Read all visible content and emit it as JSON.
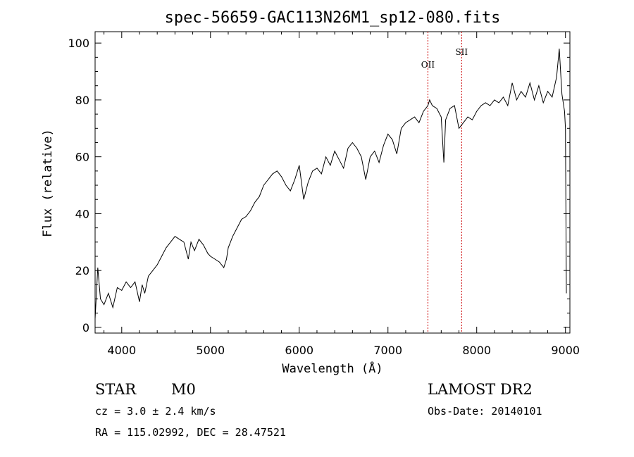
{
  "chart_data": {
    "type": "line",
    "title": "spec-56659-GAC113N26M1_sp12-080.fits",
    "xlabel": "Wavelength (Å)",
    "ylabel": "Flux (relative)",
    "xlim": [
      3700,
      9050
    ],
    "ylim": [
      -2,
      104
    ],
    "xticks": [
      4000,
      5000,
      6000,
      7000,
      8000,
      9000
    ],
    "yticks": [
      0,
      20,
      40,
      60,
      80,
      100
    ],
    "grid": false,
    "line_color": "#000000",
    "series": [
      {
        "x": [
          3700,
          3730,
          3760,
          3800,
          3850,
          3900,
          3950,
          4000,
          4050,
          4100,
          4150,
          4200,
          4230,
          4260,
          4300,
          4350,
          4400,
          4450,
          4500,
          4550,
          4600,
          4650,
          4700,
          4750,
          4780,
          4820,
          4870,
          4920,
          4970,
          5000,
          5050,
          5100,
          5150,
          5180,
          5200,
          5250,
          5300,
          5350,
          5400,
          5450,
          5500,
          5550,
          5600,
          5650,
          5700,
          5750,
          5800,
          5850,
          5900,
          5950,
          6000,
          6050,
          6100,
          6150,
          6200,
          6250,
          6300,
          6350,
          6400,
          6450,
          6500,
          6550,
          6600,
          6650,
          6700,
          6750,
          6800,
          6850,
          6900,
          6950,
          7000,
          7050,
          7100,
          7150,
          7200,
          7250,
          7300,
          7350,
          7400,
          7450,
          7470,
          7500,
          7550,
          7600,
          7630,
          7650,
          7700,
          7750,
          7800,
          7850,
          7900,
          7950,
          8000,
          8050,
          8100,
          8150,
          8200,
          8250,
          8300,
          8350,
          8400,
          8450,
          8500,
          8550,
          8600,
          8650,
          8700,
          8750,
          8800,
          8850,
          8900,
          8930,
          8960,
          8990,
          9000,
          9010
        ],
        "y": [
          3,
          21,
          10,
          8,
          12,
          7,
          14,
          13,
          16,
          14,
          16,
          9,
          15,
          12,
          18,
          20,
          22,
          25,
          28,
          30,
          32,
          31,
          30,
          24,
          30,
          27,
          31,
          29,
          26,
          25,
          24,
          23,
          21,
          24,
          28,
          32,
          35,
          38,
          39,
          41,
          44,
          46,
          50,
          52,
          54,
          55,
          53,
          50,
          48,
          52,
          57,
          45,
          51,
          55,
          56,
          54,
          60,
          57,
          62,
          59,
          56,
          63,
          65,
          63,
          60,
          52,
          60,
          62,
          58,
          64,
          68,
          66,
          61,
          70,
          72,
          73,
          74,
          72,
          76,
          78,
          80,
          78,
          77,
          74,
          58,
          73,
          77,
          78,
          70,
          72,
          74,
          73,
          76,
          78,
          79,
          78,
          80,
          79,
          81,
          78,
          86,
          80,
          83,
          81,
          86,
          80,
          85,
          79,
          83,
          81,
          88,
          98,
          82,
          76,
          70,
          12
        ]
      }
    ],
    "annotations": [
      {
        "label": "OII",
        "x": 7450,
        "color": "#cc0000"
      },
      {
        "label": "SII",
        "x": 7830,
        "color": "#cc0000"
      }
    ]
  },
  "info": {
    "class": "STAR",
    "subclass": "M0",
    "survey": "LAMOST DR2",
    "cz": "cz = 3.0 ± 2.4 km/s",
    "obs_date": "Obs-Date: 20140101",
    "coords": "RA = 115.02992, DEC =  28.47521"
  }
}
